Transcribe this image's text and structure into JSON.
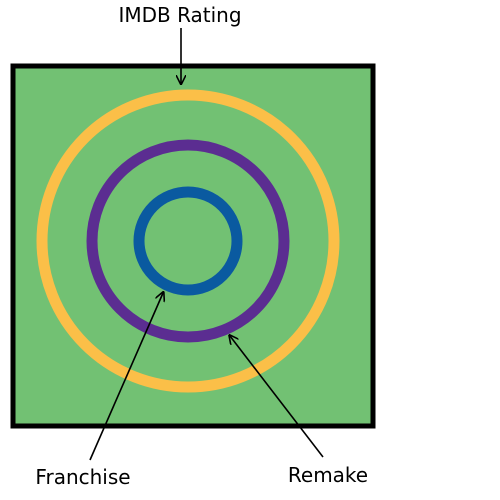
{
  "diagram": {
    "labels": {
      "top": "IMDB Rating",
      "bottom_left": "Franchise",
      "bottom_right": "Remake"
    },
    "colors": {
      "panel_fill": "#72c173",
      "panel_border": "#000000",
      "outer_ring": "#fbbf48",
      "middle_ring": "#5b2d91",
      "inner_ring": "#0a5aa0",
      "arrows": "#000000"
    }
  }
}
